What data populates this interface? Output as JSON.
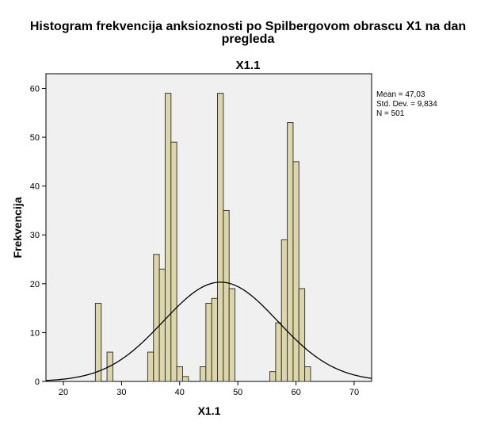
{
  "chart_data": {
    "type": "bar",
    "title_lines": [
      "Histogram frekvencija anksioznosti po Spilbergovom obrascu X1 na dan",
      "pregleda"
    ],
    "subtitle": "X1.1",
    "xlabel": "X1.1",
    "ylabel": "Frekvencija",
    "xlim": [
      17,
      73
    ],
    "ylim": [
      0,
      63
    ],
    "x_ticks": [
      20,
      30,
      40,
      50,
      60,
      70
    ],
    "y_ticks": [
      0,
      10,
      20,
      30,
      40,
      50,
      60
    ],
    "bin_width": 1,
    "bins": [
      {
        "x": 26,
        "count": 16
      },
      {
        "x": 28,
        "count": 6
      },
      {
        "x": 35,
        "count": 6
      },
      {
        "x": 36,
        "count": 26
      },
      {
        "x": 37,
        "count": 23
      },
      {
        "x": 38,
        "count": 59
      },
      {
        "x": 39,
        "count": 49
      },
      {
        "x": 40,
        "count": 3
      },
      {
        "x": 41,
        "count": 1
      },
      {
        "x": 44,
        "count": 3
      },
      {
        "x": 45,
        "count": 16
      },
      {
        "x": 46,
        "count": 17
      },
      {
        "x": 47,
        "count": 59
      },
      {
        "x": 48,
        "count": 35
      },
      {
        "x": 49,
        "count": 19
      },
      {
        "x": 56,
        "count": 2
      },
      {
        "x": 57,
        "count": 12
      },
      {
        "x": 58,
        "count": 29
      },
      {
        "x": 59,
        "count": 53
      },
      {
        "x": 60,
        "count": 45
      },
      {
        "x": 61,
        "count": 19
      },
      {
        "x": 62,
        "count": 3
      }
    ],
    "normal_curve": {
      "mean": 47.03,
      "std": 9.834,
      "n": 501,
      "bin_width": 1
    },
    "stats_labels": [
      "Mean = 47,03",
      "Std. Dev. = 9,834",
      "N = 501"
    ],
    "legend_position": "right",
    "grid": false,
    "colors": {
      "bar_fill": "#dcd6a8",
      "bar_stroke": "#3a3a3a",
      "plot_background": "#f0f0f0",
      "curve": "#000000"
    }
  }
}
